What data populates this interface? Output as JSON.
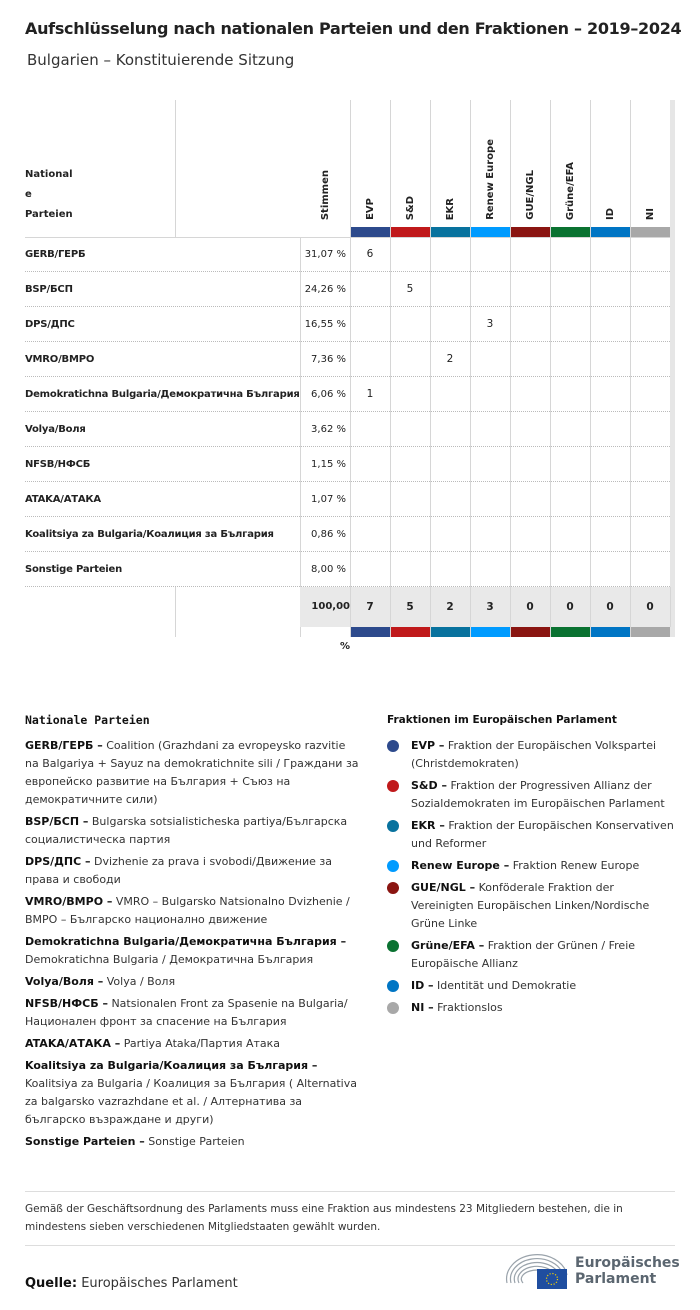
{
  "title": "Aufschlüsselung nach nationalen Parteien und den Fraktionen – 2019–2024",
  "subtitle": "Bulgarien – Konstituierende Sitzung",
  "chart_data": {
    "type": "table",
    "header": {
      "party": "National e Parteien",
      "party_lines": [
        "National",
        "e",
        "Parteien"
      ],
      "votes": "Stimmen"
    },
    "groups": [
      {
        "name": "EVP",
        "color": "#2d4a8c"
      },
      {
        "name": "S&D",
        "color": "#c0191b"
      },
      {
        "name": "EKR",
        "color": "#08729e"
      },
      {
        "name": "Renew Europe",
        "color": "#009bff"
      },
      {
        "name": "GUE/NGL",
        "color": "#8a1511"
      },
      {
        "name": "Grüne/EFA",
        "color": "#0a7231"
      },
      {
        "name": "ID",
        "color": "#0075c4"
      },
      {
        "name": "NI",
        "color": "#a8a8a8"
      }
    ],
    "rows": [
      {
        "party": "GERB/ГЕРБ",
        "votes": "31,07 %",
        "seats": {
          "EVP": "6"
        }
      },
      {
        "party": "BSP/БСП",
        "votes": "24,26 %",
        "seats": {
          "S&D": "5"
        }
      },
      {
        "party": "DPS/ДПС",
        "votes": "16,55 %",
        "seats": {
          "Renew Europe": "3"
        }
      },
      {
        "party": "VMRO/ВМРО",
        "votes": "7,36 %",
        "seats": {
          "EKR": "2"
        }
      },
      {
        "party": "Demokratichna Bulgaria/Демократична България",
        "votes": "6,06 %",
        "seats": {
          "EVP": "1"
        }
      },
      {
        "party": "Volya/Воля",
        "votes": "3,62 %",
        "seats": {}
      },
      {
        "party": "NFSB/НФСБ",
        "votes": "1,15 %",
        "seats": {}
      },
      {
        "party": "ATAKA/АТАКА",
        "votes": "1,07 %",
        "seats": {}
      },
      {
        "party": "Koalitsiya za Bulgaria/Коалиция за България",
        "votes": "0,86 %",
        "seats": {}
      },
      {
        "party": "Sonstige Parteien",
        "votes": "8,00 %",
        "seats": {}
      }
    ],
    "total": {
      "votes": "100,00 %",
      "seats": [
        "7",
        "5",
        "2",
        "3",
        "0",
        "0",
        "0",
        "0"
      ]
    }
  },
  "legend_parties": {
    "title": "Nationale Parteien",
    "items": [
      {
        "abbr": "GERB/ГЕРБ –",
        "desc": "Coalition (Grazhdani za evropeysko razvitie na Balgariya + Sayuz na demokratichnite sili / Граждани за европейско развитие на България + Съюз на демократичните сили)"
      },
      {
        "abbr": "BSP/БСП –",
        "desc": "Bulgarska sotsialisticheska partiya/Българска социалистическа партия"
      },
      {
        "abbr": "DPS/ДПС –",
        "desc": "Dvizhenie za prava i svobodi/Движение за права и свободи"
      },
      {
        "abbr": "VMRO/ВМРО –",
        "desc": "VMRO – Bulgarsko Natsionalno Dvizhenie / ВМРО – Българско национално движение"
      },
      {
        "abbr": "Demokratichna Bulgaria/Демократична България –",
        "desc": "Demokratichna Bulgaria / Демократична България"
      },
      {
        "abbr": "Volya/Воля –",
        "desc": "Volya / Воля"
      },
      {
        "abbr": "NFSB/НФСБ –",
        "desc": "Natsionalen Front za Spasenie na Bulgaria/ Национален фронт за спасение на България"
      },
      {
        "abbr": "ATAKA/АТАКА –",
        "desc": "Partiya Ataka/Партия Атака"
      },
      {
        "abbr": "Koalitsiya za Bulgaria/Коалиция за България –",
        "desc": "Koalitsiya za Bulgaria / Коалиция за България ( Alternativa za balgarsko vazrazhdane et al. / Алтернатива за българско възраждане и други)"
      },
      {
        "abbr": "Sonstige Parteien –",
        "desc": "Sonstige Parteien"
      }
    ]
  },
  "legend_groups": {
    "title": "Fraktionen im Europäischen Parlament",
    "items": [
      {
        "abbr": "EVP –",
        "desc": "Fraktion der Europäischen Volkspartei (Christdemokraten)",
        "color": "#2d4a8c"
      },
      {
        "abbr": "S&D –",
        "desc": "Fraktion der Progressiven Allianz der Sozialdemokraten im Europäischen Parlament",
        "color": "#c0191b"
      },
      {
        "abbr": "EKR –",
        "desc": "Fraktion der Europäischen Konservativen und Reformer",
        "color": "#08729e"
      },
      {
        "abbr": "Renew Europe –",
        "desc": "Fraktion Renew Europe",
        "color": "#009bff"
      },
      {
        "abbr": "GUE/NGL –",
        "desc": "Konföderale Fraktion der Vereinigten Europäischen Linken/Nordische Grüne Linke",
        "color": "#8a1511"
      },
      {
        "abbr": "Grüne/EFA –",
        "desc": "Fraktion der Grünen / Freie Europäische Allianz",
        "color": "#0a7231"
      },
      {
        "abbr": "ID –",
        "desc": "Identität und Demokratie",
        "color": "#0075c4"
      },
      {
        "abbr": "NI –",
        "desc": "Fraktionslos",
        "color": "#a8a8a8"
      }
    ]
  },
  "note": "Gemäß der Geschäftsordnung des Parlaments muss eine Fraktion aus mindestens 23 Mitgliedern bestehen, die in mindestens sieben verschiedenen Mitgliedstaaten gewählt wurden.",
  "source": {
    "label": "Quelle:",
    "value": "Europäisches Parlament"
  },
  "logo": {
    "text": "Europäisches Parlament",
    "lines": [
      "Europäisches",
      "Parlament"
    ]
  }
}
